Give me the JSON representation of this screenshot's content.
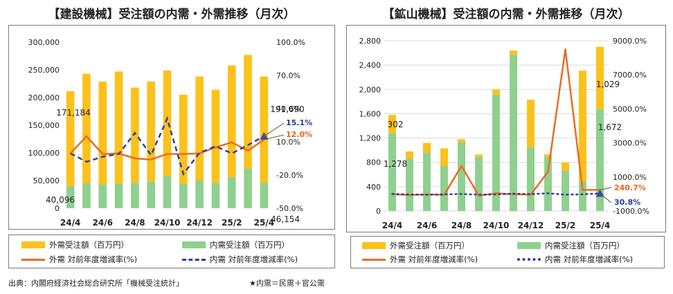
{
  "colors": {
    "foreign_bar": "#fcc11a",
    "domestic_bar": "#8fd08f",
    "foreign_line": "#ec6a24",
    "domestic_line": "#2f3f9c",
    "end_label_foreign": "#e8651a",
    "end_label_domestic": "#2b3b98"
  },
  "legend": {
    "foreign_bar": "外需受注額（百万円）",
    "domestic_bar": "内需受注額（百万円）",
    "foreign_line": "外需 対前年度増減率(%)",
    "domestic_line": "内需 対前年度増減率(%)"
  },
  "footer": {
    "source": "出典：内閣府経済社会総合研究所「機械受注統計」",
    "note": "★内需＝民需＋官公需"
  },
  "chart_data": [
    {
      "id": "construction",
      "type": "bar",
      "title": "【建設機械】受注額の内需・外需推移（月次）",
      "stacked": true,
      "categories": [
        "24/4",
        "24/5",
        "24/6",
        "24/7",
        "24/8",
        "24/9",
        "24/10",
        "24/11",
        "24/12",
        "25/1",
        "25/2",
        "25/3",
        "25/4"
      ],
      "x_tick_labels": [
        "24/4",
        "24/6",
        "24/8",
        "24/10",
        "24/12",
        "25/2",
        "25/4"
      ],
      "series": [
        {
          "name": "内需受注額（百万円）",
          "axis": "left",
          "kind": "bar",
          "values": [
            40096,
            45000,
            43000,
            44000,
            46000,
            48000,
            58000,
            44000,
            50000,
            46000,
            56000,
            72000,
            46154
          ]
        },
        {
          "name": "外需受注額（百万円）",
          "axis": "left",
          "kind": "bar",
          "values": [
            171184,
            198000,
            186000,
            203000,
            172000,
            181000,
            191000,
            161000,
            188000,
            168000,
            202000,
            205000,
            191690
          ]
        },
        {
          "name": "外需 対前年度増減率(%)",
          "axis": "right",
          "kind": "line",
          "style": "solid",
          "values": [
            -0.5,
            15,
            -1,
            -0.5,
            -5,
            -6,
            -1,
            -1,
            -0.5,
            5,
            9.5,
            2,
            12.0
          ]
        },
        {
          "name": "内需 対前年度増減率(%)",
          "axis": "right",
          "kind": "line",
          "style": "dashed",
          "values": [
            -0.5,
            -8,
            -3.5,
            -1,
            18,
            -2,
            31,
            -19,
            0,
            6,
            -0.5,
            7,
            15.1
          ]
        }
      ],
      "ylim_left": [
        0,
        300000
      ],
      "yticks_left": [
        "0",
        "50,000",
        "100,000",
        "150,000",
        "200,000",
        "250,000",
        "300,000"
      ],
      "ylim_right": [
        -50,
        100
      ],
      "yticks_right": [
        "-50.0%",
        "-20.0%",
        "10.0%",
        "40.0%",
        "70.0%",
        "100.0%"
      ],
      "data_labels": {
        "foreign_first": "171,184",
        "domestic_first": "40,096",
        "foreign_last": "191,690",
        "domestic_last": "46,154",
        "domestic_rate_last": "15.1%",
        "foreign_rate_last": "12.0%"
      },
      "grid": false
    },
    {
      "id": "mining",
      "type": "bar",
      "title": "【鉱山機械】受注額の内需・外需推移（月次）",
      "stacked": true,
      "categories": [
        "24/4",
        "24/5",
        "24/6",
        "24/7",
        "24/8",
        "24/9",
        "24/10",
        "24/11",
        "24/12",
        "25/1",
        "25/2",
        "25/3",
        "25/4"
      ],
      "x_tick_labels": [
        "24/4",
        "24/6",
        "24/8",
        "24/10",
        "24/12",
        "25/2",
        "25/4"
      ],
      "series": [
        {
          "name": "内需受注額（百万円）",
          "axis": "left",
          "kind": "bar",
          "values": [
            1278,
            860,
            960,
            740,
            1130,
            890,
            1920,
            2570,
            1050,
            890,
            660,
            490,
            1672
          ]
        },
        {
          "name": "外需受注額（百万円）",
          "axis": "left",
          "kind": "bar",
          "values": [
            302,
            120,
            160,
            290,
            50,
            40,
            80,
            70,
            780,
            40,
            140,
            1820,
            1029
          ]
        },
        {
          "name": "外需 対前年度増減率(%)",
          "axis": "right",
          "kind": "line",
          "style": "solid",
          "values": [
            -20,
            -60,
            -20,
            -60,
            1650,
            -100,
            40,
            -20,
            -40,
            1300,
            8500,
            240.7,
            240.7
          ]
        },
        {
          "name": "内需 対前年度増減率(%)",
          "axis": "right",
          "kind": "line",
          "style": "dashed",
          "values": [
            10,
            -30,
            -50,
            -20,
            0,
            -40,
            -30,
            20,
            -10,
            40,
            -40,
            -20,
            30.8
          ]
        }
      ],
      "ylim_left": [
        0,
        2800
      ],
      "yticks_left": [
        "0",
        "400",
        "800",
        "1,200",
        "1,600",
        "2,000",
        "2,400",
        "2,800"
      ],
      "ylim_right": [
        -1000,
        9000
      ],
      "yticks_right": [
        "-1000.0%",
        "1000.0%",
        "3000.0%",
        "5000.0%",
        "7000.0%",
        "9000.0%"
      ],
      "data_labels": {
        "foreign_first": "302",
        "domestic_first": "1,278",
        "foreign_last": "1,029",
        "domestic_last": "1,672",
        "foreign_rate_last": "240.7%",
        "domestic_rate_last": "30.8%"
      },
      "grid": true
    }
  ]
}
